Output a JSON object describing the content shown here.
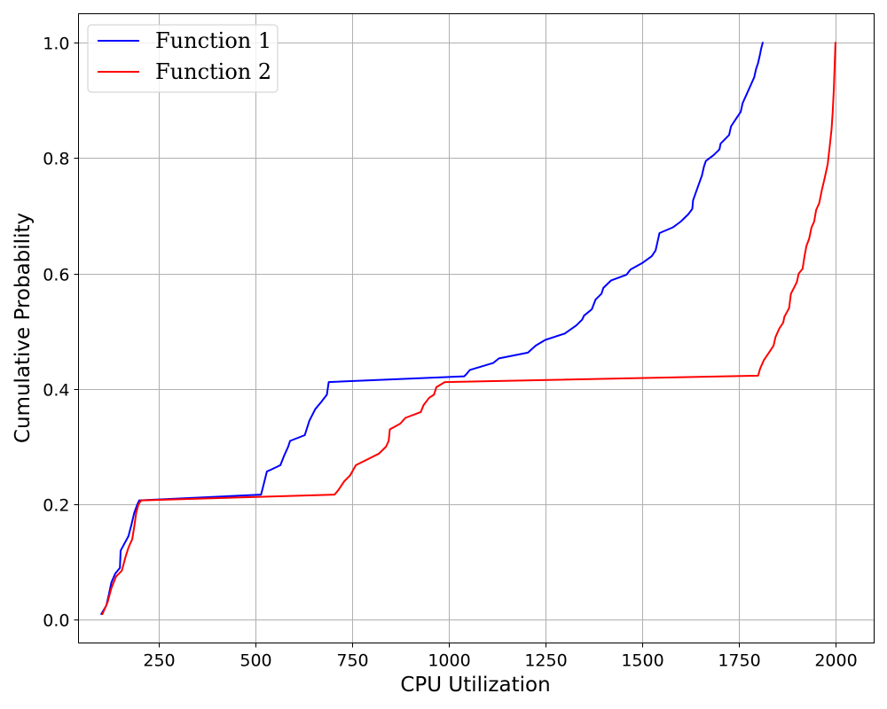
{
  "chart_data": {
    "type": "line",
    "title": "",
    "xlabel": "CPU Utilization",
    "ylabel": "Cumulative Probability",
    "xlim": [
      43,
      2100
    ],
    "ylim": [
      -0.04,
      1.05
    ],
    "xticks": [
      250,
      500,
      750,
      1000,
      1250,
      1500,
      1750,
      2000
    ],
    "yticks": [
      0.0,
      0.2,
      0.4,
      0.6,
      0.8,
      1.0
    ],
    "xtick_labels": [
      "250",
      "500",
      "750",
      "1000",
      "1250",
      "1500",
      "1750",
      "2000"
    ],
    "ytick_labels": [
      "0.0",
      "0.2",
      "0.4",
      "0.6",
      "0.8",
      "1.0"
    ],
    "grid": true,
    "legend": "top-left",
    "series": [
      {
        "name": "Function 1",
        "color": "#0000ff",
        "points": [
          [
            102,
            0.01
          ],
          [
            115,
            0.025
          ],
          [
            122,
            0.045
          ],
          [
            128,
            0.065
          ],
          [
            138,
            0.08
          ],
          [
            150,
            0.09
          ],
          [
            152,
            0.12
          ],
          [
            160,
            0.13
          ],
          [
            172,
            0.145
          ],
          [
            180,
            0.165
          ],
          [
            187,
            0.185
          ],
          [
            195,
            0.2
          ],
          [
            200,
            0.207
          ],
          [
            515,
            0.217
          ],
          [
            520,
            0.23
          ],
          [
            530,
            0.257
          ],
          [
            540,
            0.26
          ],
          [
            565,
            0.268
          ],
          [
            575,
            0.285
          ],
          [
            585,
            0.3
          ],
          [
            590,
            0.31
          ],
          [
            628,
            0.32
          ],
          [
            640,
            0.345
          ],
          [
            655,
            0.365
          ],
          [
            670,
            0.377
          ],
          [
            685,
            0.39
          ],
          [
            690,
            0.412
          ],
          [
            1040,
            0.422
          ],
          [
            1045,
            0.425
          ],
          [
            1055,
            0.433
          ],
          [
            1115,
            0.445
          ],
          [
            1130,
            0.453
          ],
          [
            1205,
            0.463
          ],
          [
            1225,
            0.475
          ],
          [
            1250,
            0.485
          ],
          [
            1300,
            0.496
          ],
          [
            1330,
            0.51
          ],
          [
            1345,
            0.52
          ],
          [
            1350,
            0.527
          ],
          [
            1370,
            0.538
          ],
          [
            1380,
            0.555
          ],
          [
            1395,
            0.565
          ],
          [
            1400,
            0.575
          ],
          [
            1420,
            0.588
          ],
          [
            1460,
            0.598
          ],
          [
            1470,
            0.607
          ],
          [
            1500,
            0.618
          ],
          [
            1525,
            0.63
          ],
          [
            1535,
            0.64
          ],
          [
            1540,
            0.655
          ],
          [
            1545,
            0.67
          ],
          [
            1580,
            0.68
          ],
          [
            1600,
            0.69
          ],
          [
            1620,
            0.703
          ],
          [
            1630,
            0.712
          ],
          [
            1632,
            0.727
          ],
          [
            1640,
            0.742
          ],
          [
            1655,
            0.77
          ],
          [
            1660,
            0.785
          ],
          [
            1665,
            0.795
          ],
          [
            1685,
            0.805
          ],
          [
            1700,
            0.815
          ],
          [
            1703,
            0.825
          ],
          [
            1725,
            0.84
          ],
          [
            1730,
            0.855
          ],
          [
            1745,
            0.87
          ],
          [
            1755,
            0.88
          ],
          [
            1760,
            0.895
          ],
          [
            1770,
            0.91
          ],
          [
            1780,
            0.925
          ],
          [
            1790,
            0.94
          ],
          [
            1795,
            0.955
          ],
          [
            1800,
            0.965
          ],
          [
            1805,
            0.98
          ],
          [
            1808,
            0.99
          ],
          [
            1812,
            1.0
          ]
        ]
      },
      {
        "name": "Function 2",
        "color": "#ff0000",
        "points": [
          [
            105,
            0.01
          ],
          [
            118,
            0.03
          ],
          [
            128,
            0.055
          ],
          [
            140,
            0.075
          ],
          [
            155,
            0.085
          ],
          [
            165,
            0.11
          ],
          [
            172,
            0.125
          ],
          [
            182,
            0.14
          ],
          [
            188,
            0.165
          ],
          [
            192,
            0.185
          ],
          [
            198,
            0.2
          ],
          [
            205,
            0.207
          ],
          [
            705,
            0.217
          ],
          [
            715,
            0.225
          ],
          [
            730,
            0.24
          ],
          [
            745,
            0.25
          ],
          [
            760,
            0.268
          ],
          [
            790,
            0.278
          ],
          [
            820,
            0.288
          ],
          [
            838,
            0.3
          ],
          [
            845,
            0.31
          ],
          [
            848,
            0.33
          ],
          [
            875,
            0.34
          ],
          [
            888,
            0.35
          ],
          [
            928,
            0.36
          ],
          [
            935,
            0.372
          ],
          [
            950,
            0.385
          ],
          [
            962,
            0.39
          ],
          [
            968,
            0.403
          ],
          [
            990,
            0.412
          ],
          [
            1800,
            0.423
          ],
          [
            1805,
            0.435
          ],
          [
            1815,
            0.45
          ],
          [
            1830,
            0.465
          ],
          [
            1840,
            0.475
          ],
          [
            1845,
            0.49
          ],
          [
            1855,
            0.505
          ],
          [
            1865,
            0.515
          ],
          [
            1868,
            0.525
          ],
          [
            1880,
            0.54
          ],
          [
            1885,
            0.565
          ],
          [
            1900,
            0.585
          ],
          [
            1905,
            0.6
          ],
          [
            1915,
            0.608
          ],
          [
            1920,
            0.63
          ],
          [
            1925,
            0.648
          ],
          [
            1932,
            0.66
          ],
          [
            1938,
            0.68
          ],
          [
            1945,
            0.69
          ],
          [
            1950,
            0.71
          ],
          [
            1958,
            0.722
          ],
          [
            1965,
            0.745
          ],
          [
            1972,
            0.765
          ],
          [
            1980,
            0.79
          ],
          [
            1985,
            0.82
          ],
          [
            1990,
            0.85
          ],
          [
            1993,
            0.88
          ],
          [
            1996,
            0.92
          ],
          [
            1998,
            0.96
          ],
          [
            2000,
            1.0
          ]
        ]
      }
    ]
  }
}
